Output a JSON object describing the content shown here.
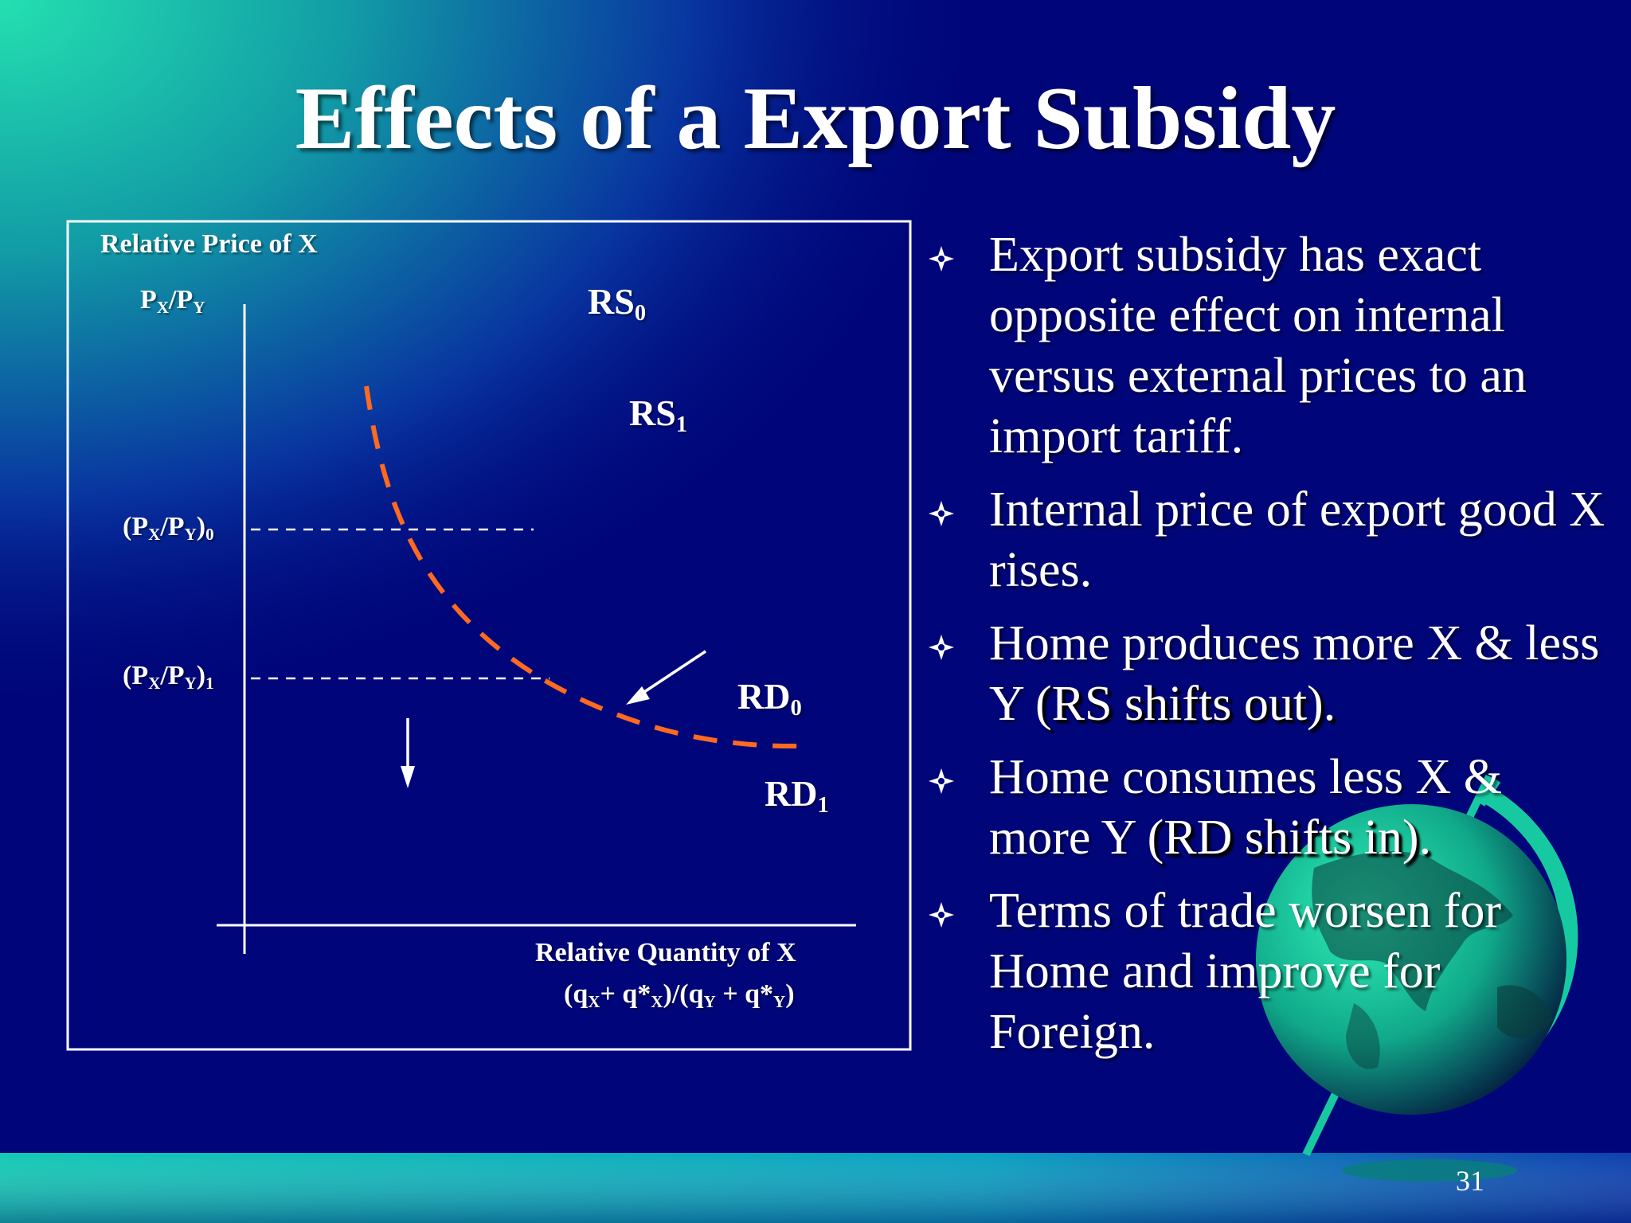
{
  "title": "Effects of a Export Subsidy",
  "diagram": {
    "y_axis_label": "Relative Price of X",
    "y_axis_symbol": {
      "main": "P",
      "sub1": "X",
      "sep": "/P",
      "sub2": "Y"
    },
    "price_0": {
      "pre": "(P",
      "sub1": "X",
      "mid": "/P",
      "sub2": "Y",
      "post": ")",
      "sub3": "0"
    },
    "price_1": {
      "pre": "(P",
      "sub1": "X",
      "mid": "/P",
      "sub2": "Y",
      "post": ")",
      "sub3": "1"
    },
    "rs0": {
      "main": "RS",
      "sub": "0"
    },
    "rs1": {
      "main": "RS",
      "sub": "1"
    },
    "rd0": {
      "main": "RD",
      "sub": "0"
    },
    "rd1": {
      "main": "RD",
      "sub": "1"
    },
    "x_axis_label": "Relative Quantity of X",
    "x_axis_formula": {
      "p1": "(q",
      "s1": "X",
      "p2": "+ q*",
      "s2": "X",
      "p3": ")/(q",
      "s3": "Y",
      "p4": " + q*",
      "s4": "Y",
      "p5": ")"
    },
    "curve_color": "#ff6a1f"
  },
  "bullets": [
    {
      "text": "Export subsidy has exact opposite effect on internal versus external prices to an import tariff.",
      "emph": ""
    },
    {
      "text": "Internal price of export good X rises.",
      "emph": ""
    },
    {
      "text": "Home produces more X & less Y ",
      "emph": "(RS shifts out)."
    },
    {
      "text": "Home consumes less X & more Y ",
      "emph": "(RD shifts in)."
    },
    {
      "text": "Terms of trade worsen for Home and improve for Foreign.",
      "emph": ""
    }
  ],
  "slide_number": "31",
  "colors": {
    "background": "#00067a",
    "teal_corner": "#22d6a8",
    "footer_band": "#19c9b2",
    "globe": "#1fe0a8"
  },
  "icons": [
    "diamond-bullet-icon",
    "globe-icon"
  ]
}
